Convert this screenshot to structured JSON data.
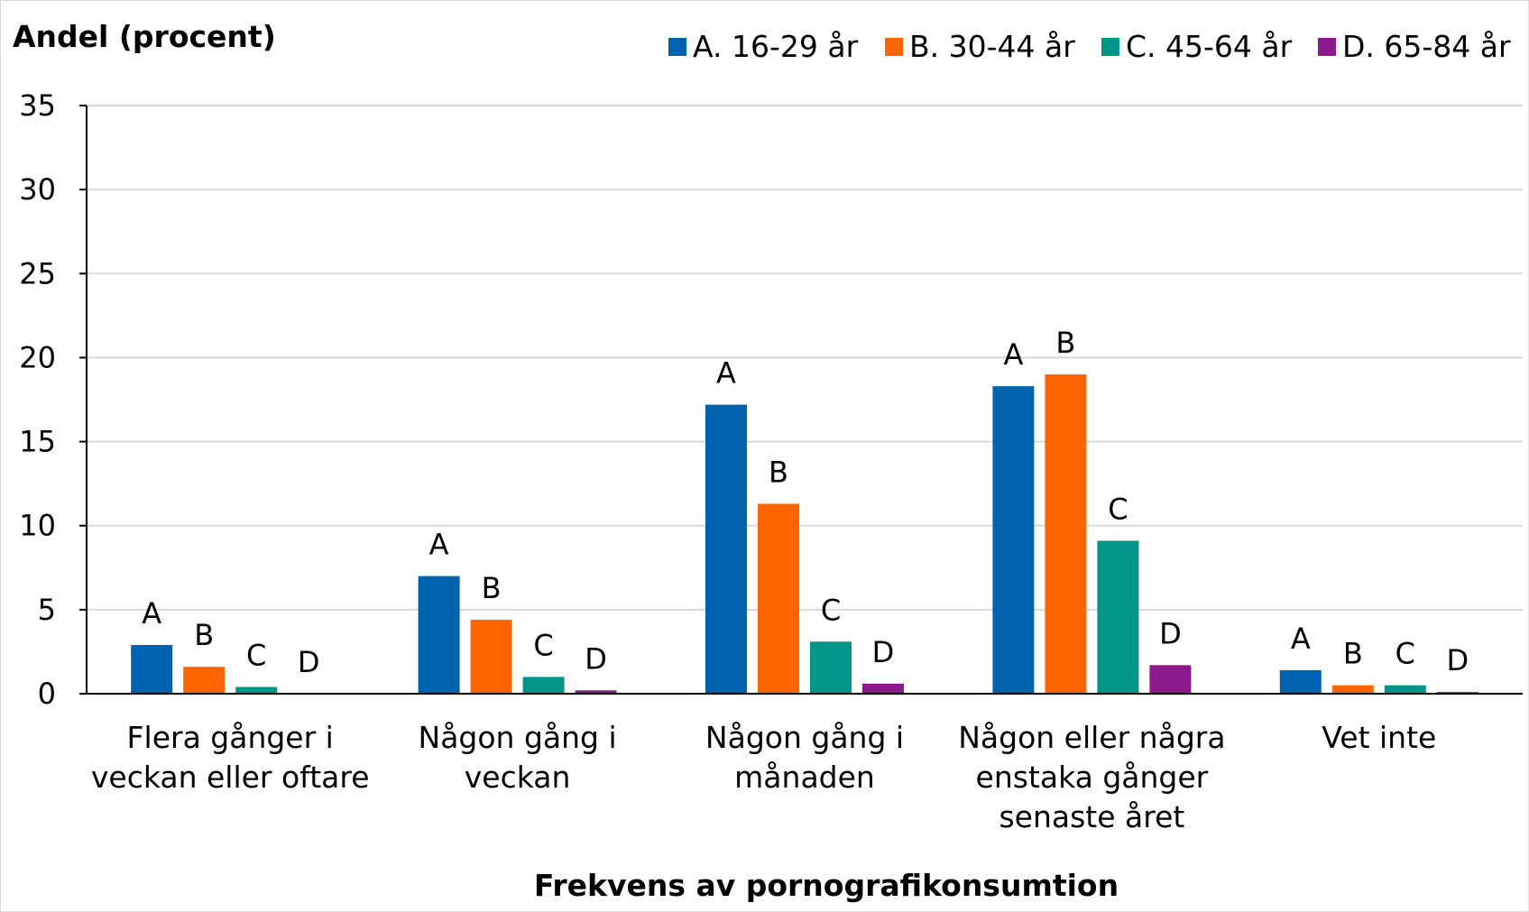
{
  "chart_data": {
    "type": "bar",
    "ylabel": "Andel (procent)",
    "xlabel": "Frekvens av pornografikonsumtion",
    "ylim": [
      0,
      35
    ],
    "yticks": [
      0,
      5,
      10,
      15,
      20,
      25,
      30,
      35
    ],
    "grid": true,
    "legend_position": "top-right",
    "categories": [
      [
        "Flera gånger i",
        "veckan eller oftare"
      ],
      [
        "Någon gång i",
        "veckan"
      ],
      [
        "Någon gång i",
        "månaden"
      ],
      [
        "Någon eller några",
        "enstaka gånger",
        "senaste året"
      ],
      [
        "Vet inte"
      ]
    ],
    "series": [
      {
        "name": "A. 16-29 år",
        "short": "A",
        "color": "#0063b0",
        "values": [
          2.9,
          7.0,
          17.2,
          18.3,
          1.4
        ]
      },
      {
        "name": "B. 30-44 år",
        "short": "B",
        "color": "#ff6600",
        "values": [
          1.6,
          4.4,
          11.3,
          19.0,
          0.5
        ]
      },
      {
        "name": "C. 45-64 år",
        "short": "C",
        "color": "#00968a",
        "values": [
          0.4,
          1.0,
          3.1,
          9.1,
          0.5
        ]
      },
      {
        "name": "D. 65-84 år",
        "short": "D",
        "color": "#8c1a8c",
        "values": [
          0.0,
          0.2,
          0.6,
          1.7,
          0.1
        ]
      }
    ]
  }
}
